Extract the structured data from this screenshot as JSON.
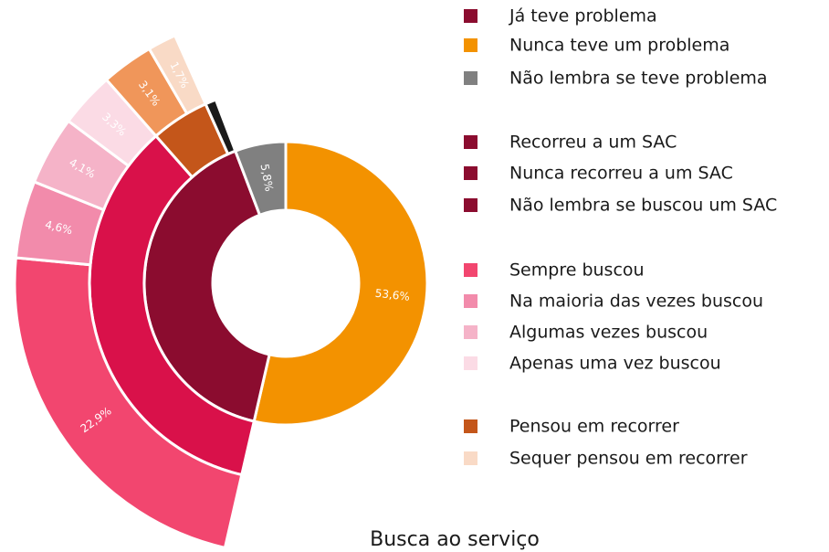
{
  "chart_data": {
    "type": "sunburst",
    "title": "Busca ao serviço",
    "legend": [
      {
        "name": "Já teve problema",
        "color": "#8b0c2f"
      },
      {
        "name": "Nunca teve um problema",
        "color": "#f39200"
      },
      {
        "name": "Não lembra se teve problema",
        "color": "#808080"
      },
      {
        "name": "Recorreu a um SAC",
        "color": "#8b0c2f"
      },
      {
        "name": "Nunca recorreu a um SAC",
        "color": "#8b0c2f"
      },
      {
        "name": "Não lembra se buscou um SAC",
        "color": "#8b0c2f"
      },
      {
        "name": "Sempre buscou",
        "color": "#f2466f"
      },
      {
        "name": "Na maioria das vezes buscou",
        "color": "#f28bab"
      },
      {
        "name": "Algumas vezes buscou",
        "color": "#f5b3c8"
      },
      {
        "name": "Apenas uma vez buscou",
        "color": "#fbdbe5"
      },
      {
        "name": "Pensou em recorrer",
        "color": "#c4561a"
      },
      {
        "name": "Sequer pensou em recorrer",
        "color": "#f9dac6"
      }
    ],
    "segments": [
      {
        "value": 53.6,
        "label": "53,6%",
        "color": "#f39200"
      },
      {
        "value": 40.6,
        "color": "#8b0c2f",
        "children": [
          {
            "value": 34.9,
            "color": "#d9114a",
            "children": [
              {
                "value": 22.9,
                "label": "22,9%",
                "color": "#f2466f"
              },
              {
                "value": 4.6,
                "label": "4,6%",
                "color": "#f28bab"
              },
              {
                "value": 4.1,
                "label": "4,1%",
                "color": "#f5b3c8"
              },
              {
                "value": 3.3,
                "label": "3,3%",
                "color": "#fbdbe5"
              }
            ]
          },
          {
            "value": 4.8,
            "color": "#c4561a",
            "children": [
              {
                "value": 3.1,
                "label": "3,1%",
                "color": "#f0965a"
              },
              {
                "value": 1.7,
                "label": "1,7%",
                "color": "#f9dac6"
              }
            ]
          },
          {
            "value": 0.9,
            "color": "#1a1a1a"
          }
        ]
      },
      {
        "value": 5.8,
        "label": "5,8%",
        "color": "#808080"
      }
    ]
  }
}
